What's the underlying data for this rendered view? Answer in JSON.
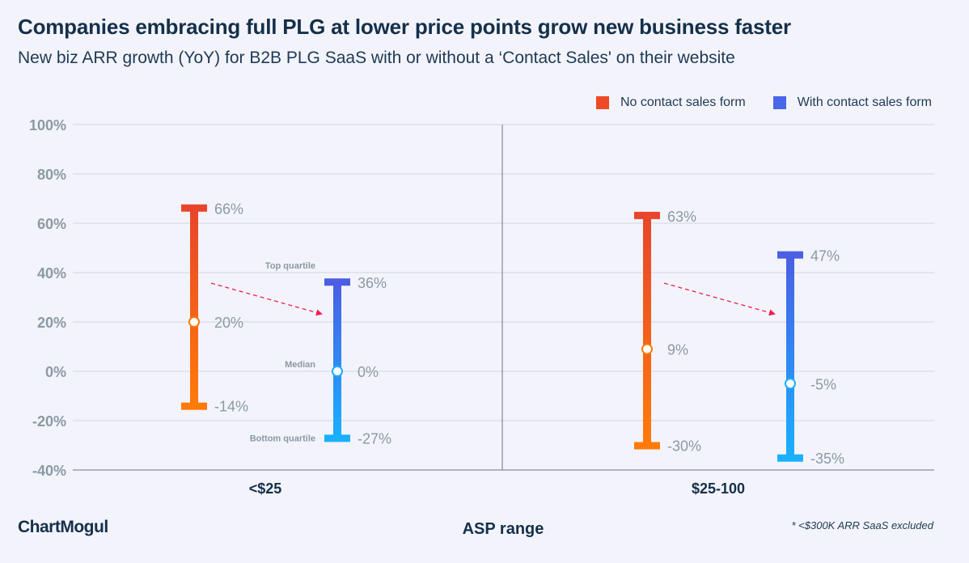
{
  "header": {
    "title": "Companies embracing full PLG at lower price points grow new business faster",
    "subtitle": "New biz ARR growth (YoY) for B2B PLG SaaS with or without a ‘Contact Sales' on their website"
  },
  "legend": [
    {
      "label": "No contact sales form",
      "color": "#ee4a26"
    },
    {
      "label": "With contact sales form",
      "color": "#4a67e8"
    }
  ],
  "footer": {
    "logo": "ChartMogul",
    "xlabel": "ASP range",
    "footnote": "* <$300K ARR SaaS excluded"
  },
  "annotations": {
    "top_quartile": "Top quartile",
    "median": "Median",
    "bottom_quartile": "Bottom quartile"
  },
  "colors": {
    "orange_top": "#e8452a",
    "orange_bottom": "#ff7a0a",
    "blue_top": "#4a5fe4",
    "blue_bottom": "#18b0ff",
    "arrow": "#f0204a",
    "grid": "#d3d5dc",
    "tick_text": "#8a9aa5",
    "value_text": "#8a9aa5"
  },
  "chart_data": {
    "type": "range",
    "title": "Companies embracing full PLG at lower price points grow new business faster",
    "subtitle": "New biz ARR growth (YoY) for B2B PLG SaaS with or without a ‘Contact Sales' on their website",
    "xlabel": "ASP range",
    "ylabel": "",
    "ylim": [
      -40,
      100
    ],
    "yticks": [
      100,
      80,
      60,
      40,
      20,
      0,
      -20,
      -40
    ],
    "ytick_labels": [
      "100%",
      "80%",
      "60%",
      "40%",
      "20%",
      "0%",
      "-20%",
      "-40%"
    ],
    "grid": true,
    "legend_position": "top-right",
    "categories": [
      "<$25",
      "$25-100"
    ],
    "series": [
      {
        "name": "No contact sales form",
        "top_quartile": [
          66,
          63
        ],
        "median": [
          20,
          9
        ],
        "bottom_quartile": [
          -14,
          -30
        ],
        "labels_top": [
          "66%",
          "63%"
        ],
        "labels_median": [
          "20%",
          "9%"
        ],
        "labels_bottom": [
          "-14%",
          "-30%"
        ]
      },
      {
        "name": "With contact sales form",
        "top_quartile": [
          36,
          47
        ],
        "median": [
          0,
          -5
        ],
        "bottom_quartile": [
          -27,
          -35
        ],
        "labels_top": [
          "36%",
          "47%"
        ],
        "labels_median": [
          "0%",
          "-5%"
        ],
        "labels_bottom": [
          "-27%",
          "-35%"
        ]
      }
    ]
  }
}
